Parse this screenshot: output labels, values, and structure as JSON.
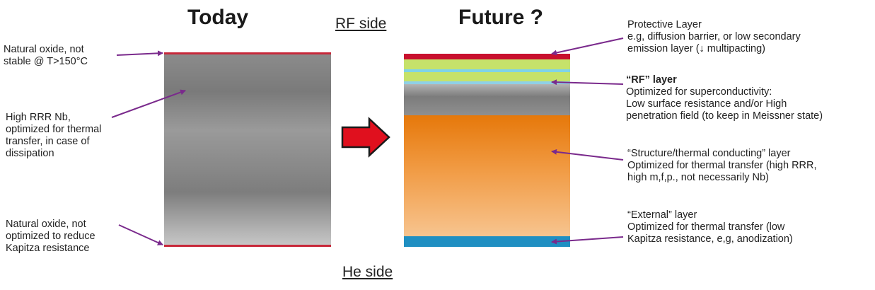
{
  "headings": {
    "today": "Today",
    "future": "Future ?",
    "rf_side": "RF side",
    "he_side": "He side"
  },
  "today_annotations": {
    "natural_oxide_top": [
      "Natural oxide, not",
      "stable @ T>150°C"
    ],
    "bulk_nb": [
      "High RRR Nb,",
      "optimized for thermal",
      "transfer, in case of",
      "dissipation"
    ],
    "natural_oxide_bottom": [
      "Natural oxide, not",
      "optimized to reduce",
      "Kapitza resistance"
    ]
  },
  "future_annotations": {
    "protective": {
      "title": "Protective Layer",
      "lines": [
        "e.g, diffusion barrier, or low secondary",
        "emission layer (↓ multipacting)"
      ]
    },
    "rf": {
      "title": "“RF” layer",
      "lines": [
        "Optimized for superconductivity:",
        "Low surface resistance and/or High",
        "penetration field (to keep in Meissner state)"
      ]
    },
    "structure": {
      "title": "“Structure/thermal conducting” layer",
      "lines": [
        "Optimized for thermal transfer (high RRR,",
        "high m,f,p., not necessarily Nb)"
      ]
    },
    "external": {
      "title": "“External” layer",
      "lines": [
        "Optimized for thermal transfer (low",
        "Kapitza resistance, e,g, anodization)"
      ]
    }
  },
  "colors": {
    "oxide_line": "#c8283a",
    "annotation_arrow": "#7a2a8c",
    "transition_arrow": "#e0101e",
    "protective_layer": "#c8102e",
    "green_layer": "#c6e26a",
    "rf_layer": "#8fd0e6",
    "structure_layer": "#e6780a",
    "external_layer": "#1f8fc2"
  }
}
